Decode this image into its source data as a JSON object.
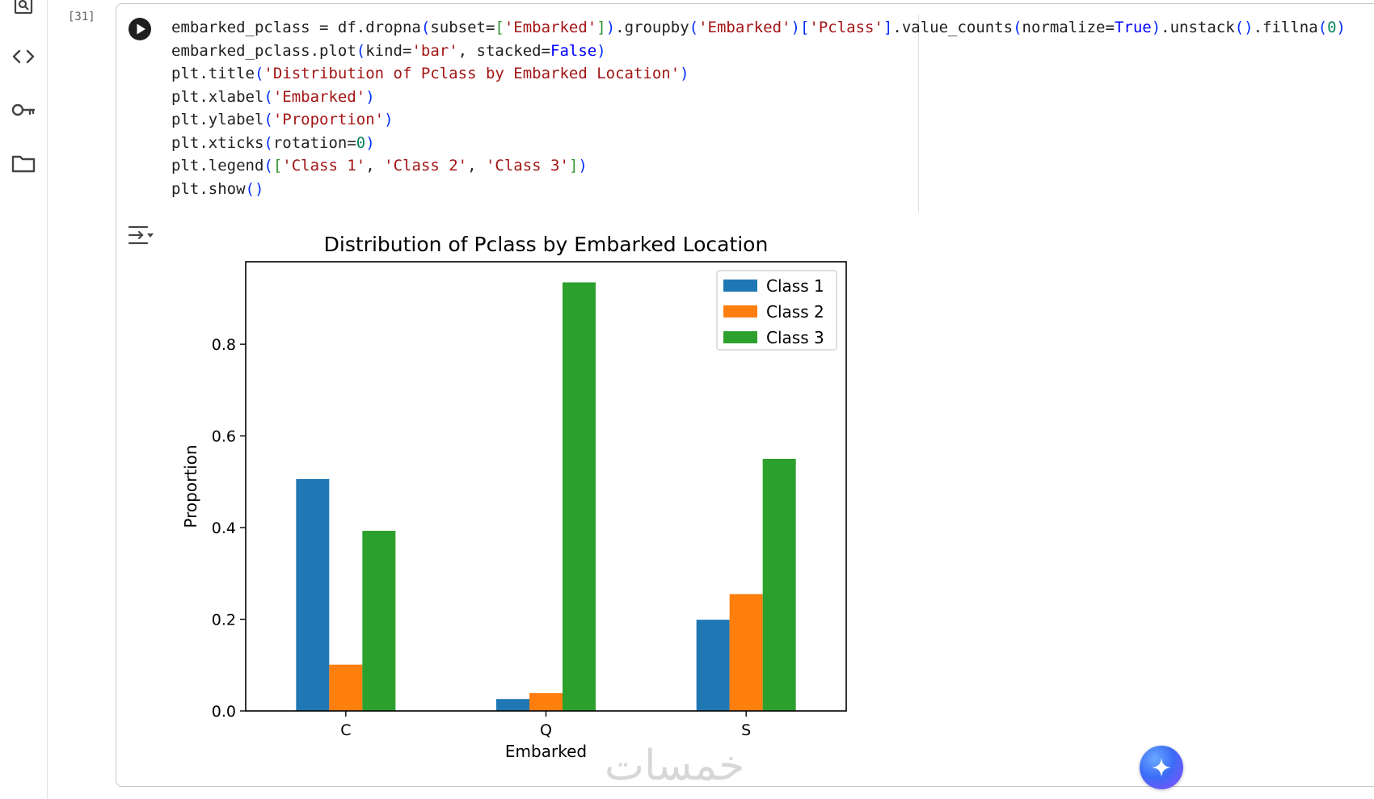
{
  "sidebar": {
    "icons": [
      "search-code-icon",
      "code-icon",
      "key-icon",
      "folder-icon"
    ]
  },
  "cell": {
    "execution_count": "[31]",
    "code": [
      [
        [
          "t",
          "embarked_pclass = df.dropna"
        ],
        [
          "p1",
          "("
        ],
        [
          "t",
          "subset="
        ],
        [
          "p2",
          "["
        ],
        [
          "s",
          "'Embarked'"
        ],
        [
          "p2",
          "]"
        ],
        [
          "p1",
          ")"
        ],
        [
          "t",
          ".groupby"
        ],
        [
          "p1",
          "("
        ],
        [
          "s",
          "'Embarked'"
        ],
        [
          "p1",
          ")"
        ],
        [
          "p1",
          "["
        ],
        [
          "s",
          "'Pclass'"
        ],
        [
          "p1",
          "]"
        ],
        [
          "t",
          ".value_counts"
        ],
        [
          "p1",
          "("
        ],
        [
          "t",
          "normalize="
        ],
        [
          "k",
          "True"
        ],
        [
          "p1",
          ")"
        ],
        [
          "t",
          ".unstack"
        ],
        [
          "p1",
          "()"
        ],
        [
          "t",
          ".fillna"
        ],
        [
          "p1",
          "("
        ],
        [
          "n",
          "0"
        ],
        [
          "p1",
          ")"
        ]
      ],
      [
        [
          "t",
          "embarked_pclass.plot"
        ],
        [
          "p1",
          "("
        ],
        [
          "t",
          "kind="
        ],
        [
          "s",
          "'bar'"
        ],
        [
          "t",
          ", stacked="
        ],
        [
          "k",
          "False"
        ],
        [
          "p1",
          ")"
        ]
      ],
      [
        [
          "t",
          "plt.title"
        ],
        [
          "p1",
          "("
        ],
        [
          "s",
          "'Distribution of Pclass by Embarked Location'"
        ],
        [
          "p1",
          ")"
        ]
      ],
      [
        [
          "t",
          "plt.xlabel"
        ],
        [
          "p1",
          "("
        ],
        [
          "s",
          "'Embarked'"
        ],
        [
          "p1",
          ")"
        ]
      ],
      [
        [
          "t",
          "plt.ylabel"
        ],
        [
          "p1",
          "("
        ],
        [
          "s",
          "'Proportion'"
        ],
        [
          "p1",
          ")"
        ]
      ],
      [
        [
          "t",
          "plt.xticks"
        ],
        [
          "p1",
          "("
        ],
        [
          "t",
          "rotation="
        ],
        [
          "n",
          "0"
        ],
        [
          "p1",
          ")"
        ]
      ],
      [
        [
          "t",
          "plt.legend"
        ],
        [
          "p1",
          "("
        ],
        [
          "p2",
          "["
        ],
        [
          "s",
          "'Class 1'"
        ],
        [
          "t",
          ", "
        ],
        [
          "s",
          "'Class 2'"
        ],
        [
          "t",
          ", "
        ],
        [
          "s",
          "'Class 3'"
        ],
        [
          "p2",
          "]"
        ],
        [
          "p1",
          ")"
        ]
      ],
      [
        [
          "t",
          "plt.show"
        ],
        [
          "p1",
          "()"
        ]
      ]
    ]
  },
  "chart_data": {
    "type": "bar",
    "title": "Distribution of Pclass by Embarked Location",
    "xlabel": "Embarked",
    "ylabel": "Proportion",
    "categories": [
      "C",
      "Q",
      "S"
    ],
    "series": [
      {
        "name": "Class 1",
        "color": "#1f77b4",
        "values": [
          0.506,
          0.026,
          0.199
        ]
      },
      {
        "name": "Class 2",
        "color": "#ff7f0e",
        "values": [
          0.101,
          0.039,
          0.255
        ]
      },
      {
        "name": "Class 3",
        "color": "#2ca02c",
        "values": [
          0.393,
          0.935,
          0.55
        ]
      }
    ],
    "ylim": [
      0,
      0.98
    ],
    "yticks": [
      0.0,
      0.2,
      0.4,
      0.6,
      0.8
    ],
    "ytick_labels": [
      "0.0",
      "0.2",
      "0.4",
      "0.6",
      "0.8"
    ],
    "legend_position": "top-right",
    "grid": false
  },
  "watermark": "خمسات"
}
